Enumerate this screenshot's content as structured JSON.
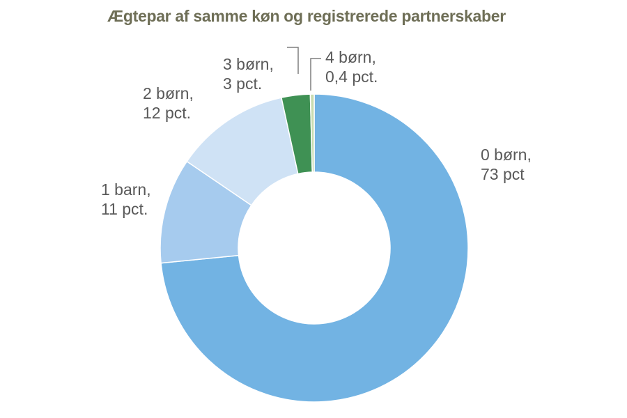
{
  "chart_data": {
    "type": "pie",
    "variant": "donut",
    "title": "Ægtepar af samme køn og registrerede partnerskaber",
    "categories": [
      "0 børn",
      "1 barn",
      "2 børn",
      "3 børn",
      "4 børn"
    ],
    "values": [
      73,
      11,
      12,
      3,
      0.4
    ],
    "colors": [
      "#72b3e3",
      "#a6cbee",
      "#cfe2f5",
      "#3f9154",
      "#c9dcb0"
    ],
    "data_labels": [
      [
        "0 børn,",
        "73 pct"
      ],
      [
        "1 barn,",
        "11 pct."
      ],
      [
        "2 børn,",
        "12 pct."
      ],
      [
        "3 børn,",
        "3 pct."
      ],
      [
        "4 børn,",
        "0,4 pct."
      ]
    ]
  }
}
